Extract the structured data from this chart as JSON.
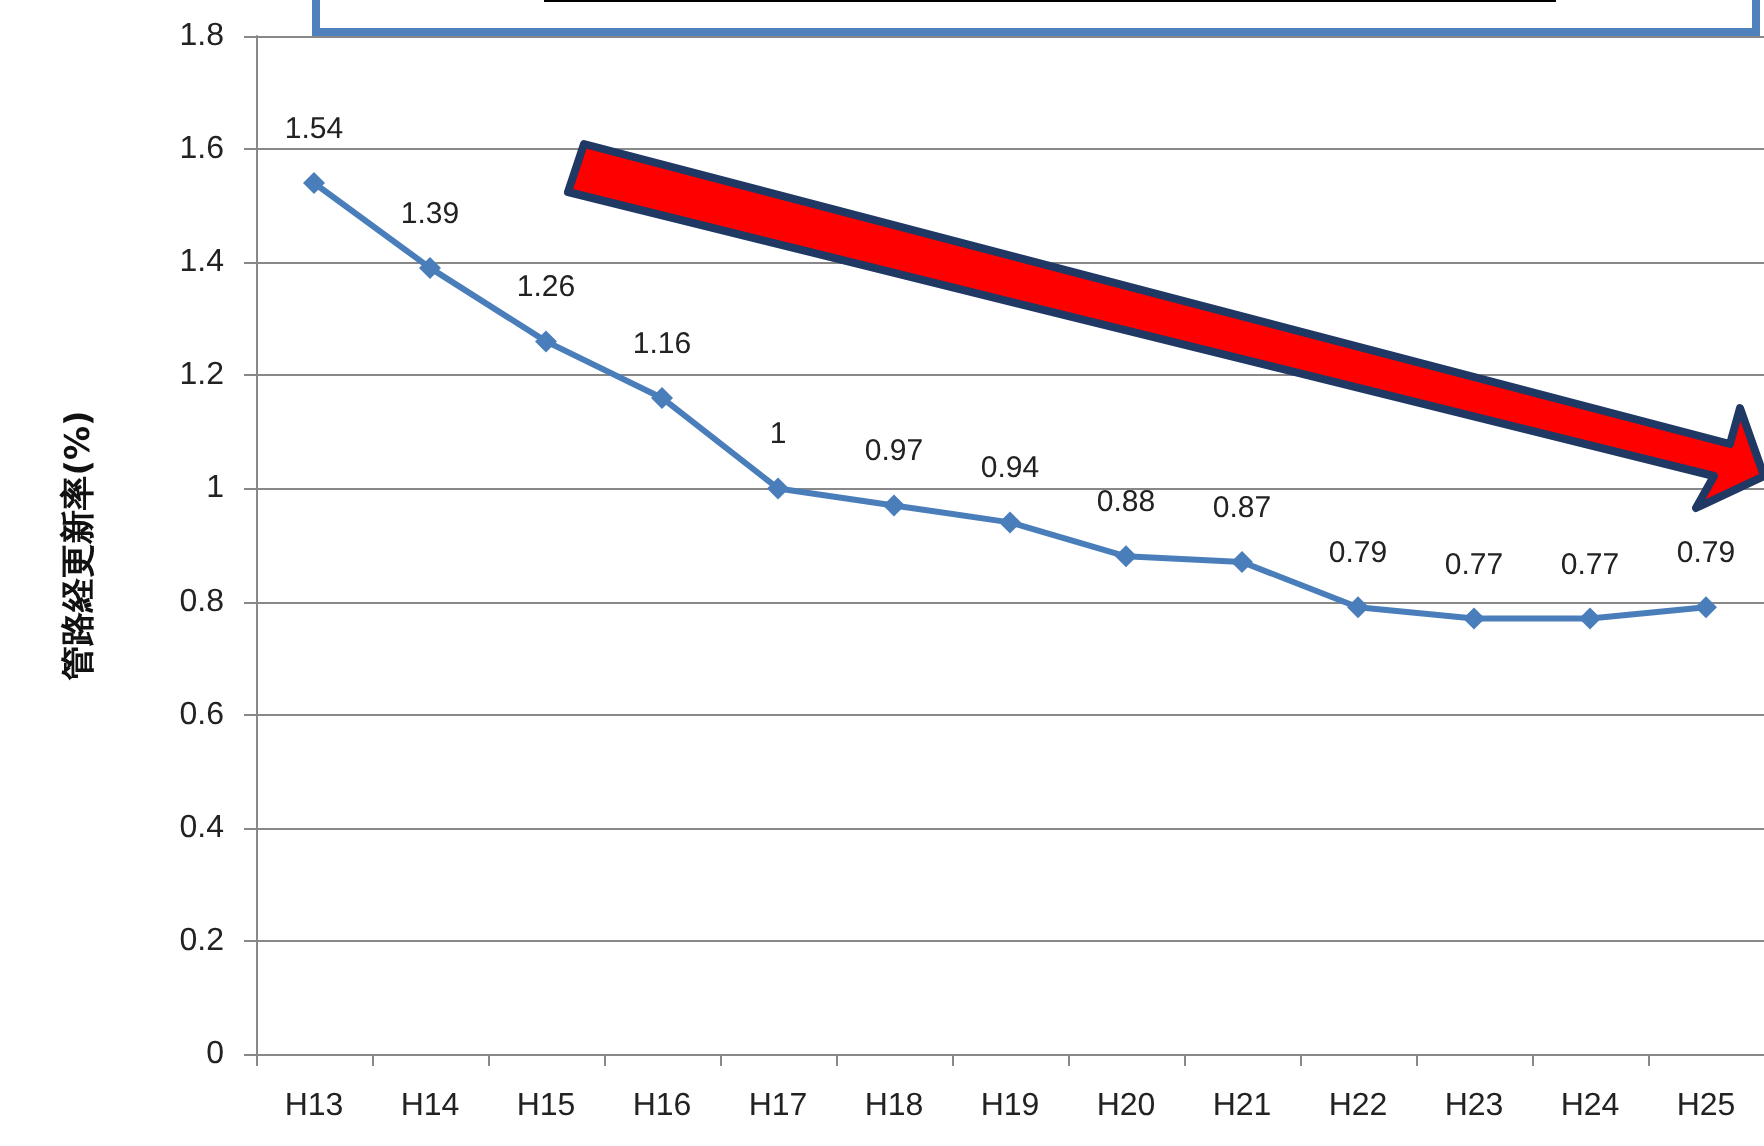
{
  "chart_data": {
    "type": "line",
    "ylabel": "管路経更新率(%)",
    "categories": [
      "H13",
      "H14",
      "H15",
      "H16",
      "H17",
      "H18",
      "H19",
      "H20",
      "H21",
      "H22",
      "H23",
      "H24",
      "H25"
    ],
    "series": [
      {
        "color": "#4a7ebb",
        "values": [
          1.54,
          1.39,
          1.26,
          1.16,
          1,
          0.97,
          0.94,
          0.88,
          0.87,
          0.79,
          0.77,
          0.77,
          0.79
        ]
      }
    ],
    "ylim": [
      0,
      1.8
    ],
    "yticks": [
      0,
      0.2,
      0.4,
      0.6,
      0.8,
      1,
      1.2,
      1.4,
      1.6,
      1.8
    ],
    "grid": "y",
    "marker": "diamond",
    "data_labels": true
  }
}
